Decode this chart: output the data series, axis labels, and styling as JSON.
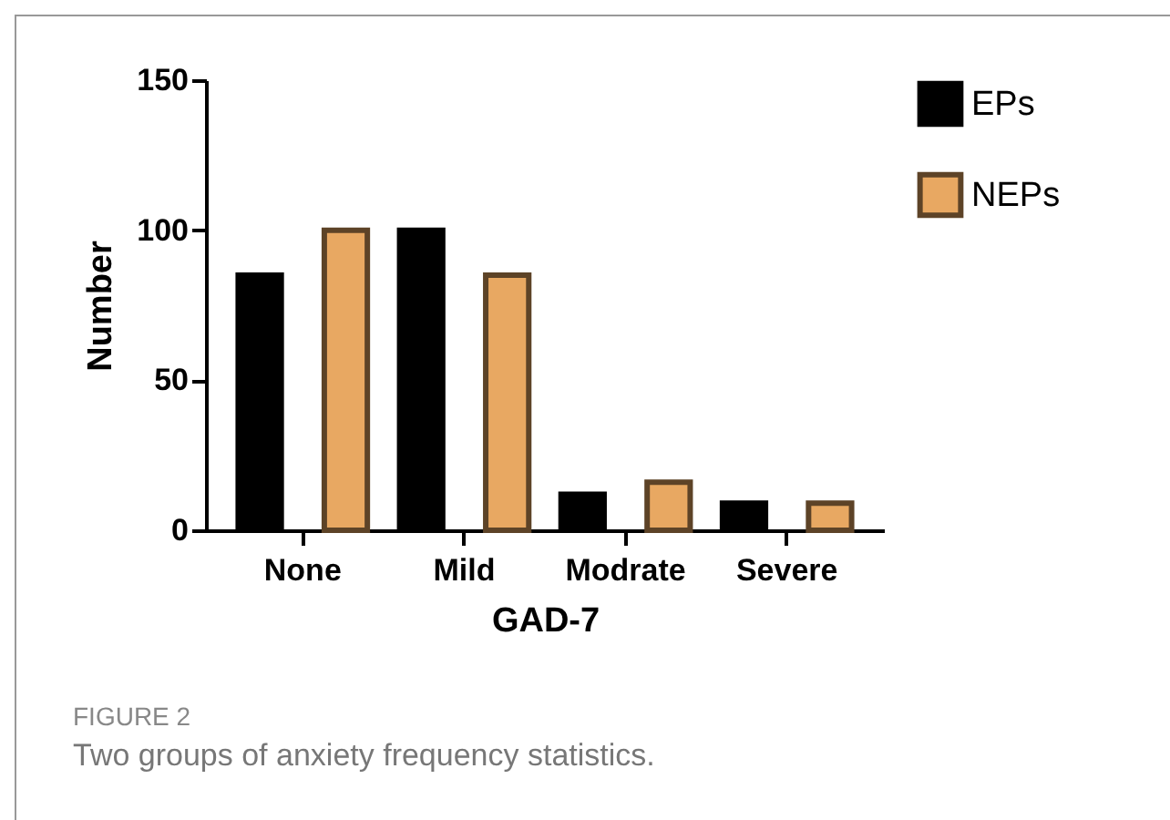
{
  "chart_data": {
    "type": "bar",
    "xlabel": "GAD-7",
    "ylabel": "Number",
    "categories": [
      "None",
      "Mild",
      "Modrate",
      "Severe"
    ],
    "series": [
      {
        "name": "EPs",
        "color": "#000000",
        "values": [
          85,
          100,
          12,
          9
        ]
      },
      {
        "name": "NEPs",
        "color": "#e8a862",
        "values": [
          100,
          85,
          16,
          9
        ]
      }
    ],
    "ylim": [
      0,
      150
    ],
    "yticks": [
      0,
      50,
      100,
      150
    ],
    "grid": false,
    "legend": "top right",
    "annotations": [
      "FIGURE 2",
      "Two groups of anxiety frequency statistics."
    ]
  }
}
